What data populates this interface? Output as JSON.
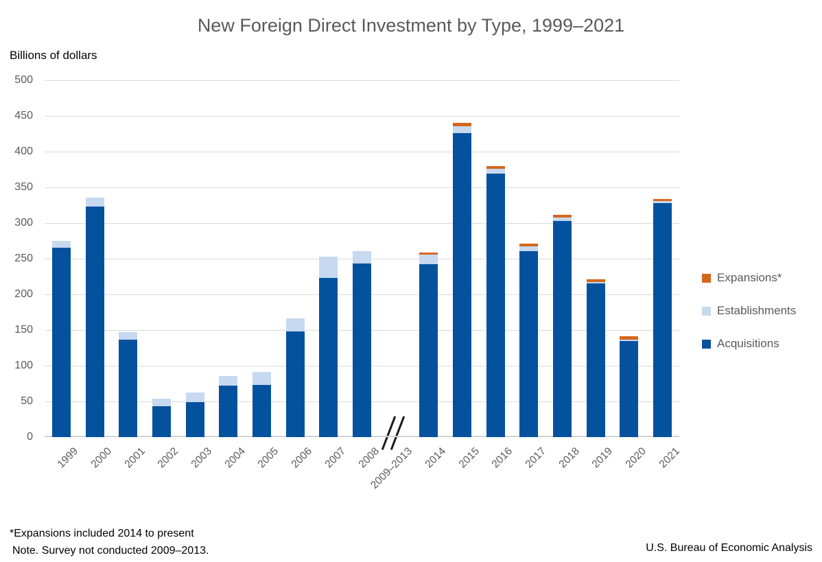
{
  "notes": {
    "footnote_line1": "*Expansions included 2014 to present",
    "footnote_line2": "Note. Survey not conducted 2009–2013.",
    "source": "U.S. Bureau of Economic Analysis"
  },
  "colors": {
    "acquisitions": "#04519e",
    "establishments": "#c6d9f0",
    "expansions": "#d5671d",
    "grid": "#d9d9d9",
    "axis_text": "#595959"
  },
  "legend": [
    {
      "label": "Expansions*",
      "color_key": "expansions"
    },
    {
      "label": "Establishments",
      "color_key": "establishments"
    },
    {
      "label": "Acquisitions",
      "color_key": "acquisitions"
    }
  ],
  "chart_data": {
    "type": "bar",
    "stacked": true,
    "title": "New Foreign Direct Investment by Type, 1999–2021",
    "xlabel": "",
    "ylabel": "Billions of dollars",
    "ylim": [
      0,
      500
    ],
    "ytick_step": 50,
    "grid": true,
    "legend_position": "right",
    "axis_break": {
      "category": "2009–2013",
      "reason": "Survey not conducted 2009–2013"
    },
    "categories": [
      "1999",
      "2000",
      "2001",
      "2002",
      "2003",
      "2004",
      "2005",
      "2006",
      "2007",
      "2008",
      "2009–2013",
      "2014",
      "2015",
      "2016",
      "2017",
      "2018",
      "2019",
      "2020",
      "2021"
    ],
    "series": [
      {
        "name": "Acquisitions",
        "color_key": "acquisitions",
        "values": [
          265,
          323,
          137,
          43,
          49,
          72,
          73,
          148,
          223,
          243,
          null,
          242,
          426,
          369,
          261,
          303,
          215,
          135,
          328
        ]
      },
      {
        "name": "Establishments",
        "color_key": "establishments",
        "values": [
          10,
          13,
          10,
          11,
          14,
          14,
          18,
          18,
          30,
          18,
          null,
          14,
          10,
          7,
          6,
          5,
          2,
          2,
          3
        ]
      },
      {
        "name": "Expansions*",
        "color_key": "expansions",
        "values": [
          0,
          0,
          0,
          0,
          0,
          0,
          0,
          0,
          0,
          0,
          null,
          3,
          4,
          4,
          4,
          4,
          4,
          4,
          3
        ]
      }
    ]
  }
}
